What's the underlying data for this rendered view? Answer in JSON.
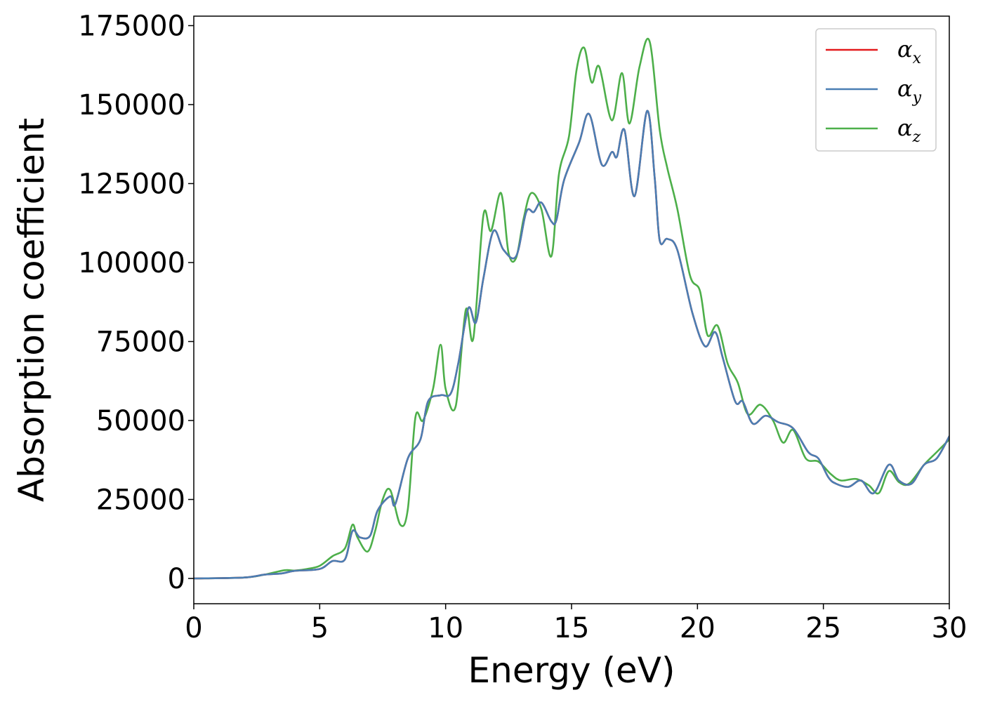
{
  "chart_data": {
    "type": "line",
    "title": "",
    "xlabel": "Energy (eV)",
    "ylabel": "Absorption coefficient",
    "xlim": [
      0,
      30
    ],
    "ylim": [
      -8000,
      178000
    ],
    "xticks": [
      0,
      5,
      10,
      15,
      20,
      25,
      30
    ],
    "xtick_labels": [
      "0",
      "5",
      "10",
      "15",
      "20",
      "25",
      "30"
    ],
    "yticks": [
      0,
      25000,
      50000,
      75000,
      100000,
      125000,
      150000,
      175000
    ],
    "ytick_labels": [
      "0",
      "25000",
      "50000",
      "75000",
      "100000",
      "125000",
      "150000",
      "175000"
    ],
    "grid": false,
    "legend_position": "top-right",
    "series": [
      {
        "name": "αx",
        "legend_base": "α",
        "legend_sub": "x",
        "color": "#e41a1c",
        "points": [
          [
            0,
            0
          ],
          [
            2,
            300
          ],
          [
            2.8,
            1200
          ],
          [
            3.5,
            1600
          ],
          [
            4,
            2400
          ],
          [
            5,
            3000
          ],
          [
            5.5,
            5500
          ],
          [
            6,
            6000
          ],
          [
            6.3,
            15000
          ],
          [
            6.6,
            13000
          ],
          [
            7,
            13500
          ],
          [
            7.3,
            21500
          ],
          [
            7.8,
            26000
          ],
          [
            8,
            23500
          ],
          [
            8.5,
            38000
          ],
          [
            9,
            44000
          ],
          [
            9.3,
            56000
          ],
          [
            9.8,
            58000
          ],
          [
            10.2,
            58500
          ],
          [
            10.5,
            68000
          ],
          [
            10.9,
            85500
          ],
          [
            11.2,
            81000
          ],
          [
            11.5,
            95000
          ],
          [
            11.9,
            110000
          ],
          [
            12.3,
            104000
          ],
          [
            12.8,
            102000
          ],
          [
            13.2,
            116000
          ],
          [
            13.5,
            116000
          ],
          [
            13.8,
            119000
          ],
          [
            14.2,
            113000
          ],
          [
            14.4,
            113500
          ],
          [
            14.7,
            126000
          ],
          [
            15.3,
            138000
          ],
          [
            15.7,
            147000
          ],
          [
            16.2,
            131000
          ],
          [
            16.6,
            135000
          ],
          [
            16.8,
            133500
          ],
          [
            17.1,
            142000
          ],
          [
            17.5,
            121000
          ],
          [
            18,
            148000
          ],
          [
            18.3,
            127000
          ],
          [
            18.5,
            107000
          ],
          [
            18.8,
            107500
          ],
          [
            19.2,
            104000
          ],
          [
            19.8,
            84000
          ],
          [
            20.3,
            73500
          ],
          [
            20.7,
            78000
          ],
          [
            21,
            70000
          ],
          [
            21.5,
            56000
          ],
          [
            21.8,
            56000
          ],
          [
            22.2,
            49000
          ],
          [
            22.7,
            51500
          ],
          [
            23.2,
            49500
          ],
          [
            23.8,
            47500
          ],
          [
            24.4,
            40000
          ],
          [
            24.8,
            38000
          ],
          [
            25.2,
            32000
          ],
          [
            25.5,
            30000
          ],
          [
            26,
            29000
          ],
          [
            26.5,
            31000
          ],
          [
            27,
            27000
          ],
          [
            27.6,
            36000
          ],
          [
            28,
            31000
          ],
          [
            28.5,
            30000
          ],
          [
            29,
            36000
          ],
          [
            29.5,
            38000
          ],
          [
            30,
            45000
          ]
        ]
      },
      {
        "name": "αy",
        "legend_base": "α",
        "legend_sub": "y",
        "color": "#4a7eb3",
        "points": [
          [
            0,
            0
          ],
          [
            2,
            300
          ],
          [
            2.8,
            1200
          ],
          [
            3.5,
            1600
          ],
          [
            4,
            2400
          ],
          [
            5,
            3000
          ],
          [
            5.5,
            5500
          ],
          [
            6,
            6000
          ],
          [
            6.3,
            15000
          ],
          [
            6.6,
            13000
          ],
          [
            7,
            13500
          ],
          [
            7.3,
            21500
          ],
          [
            7.8,
            26000
          ],
          [
            8,
            23500
          ],
          [
            8.5,
            38000
          ],
          [
            9,
            44000
          ],
          [
            9.3,
            56000
          ],
          [
            9.8,
            58000
          ],
          [
            10.2,
            58500
          ],
          [
            10.5,
            68000
          ],
          [
            10.9,
            85500
          ],
          [
            11.2,
            81000
          ],
          [
            11.5,
            95000
          ],
          [
            11.9,
            110000
          ],
          [
            12.3,
            104000
          ],
          [
            12.8,
            102000
          ],
          [
            13.2,
            116000
          ],
          [
            13.5,
            116000
          ],
          [
            13.8,
            119000
          ],
          [
            14.2,
            113000
          ],
          [
            14.4,
            113500
          ],
          [
            14.7,
            126000
          ],
          [
            15.3,
            138000
          ],
          [
            15.7,
            147000
          ],
          [
            16.2,
            131000
          ],
          [
            16.6,
            135000
          ],
          [
            16.8,
            133500
          ],
          [
            17.1,
            142000
          ],
          [
            17.5,
            121000
          ],
          [
            18,
            148000
          ],
          [
            18.3,
            127000
          ],
          [
            18.5,
            107000
          ],
          [
            18.8,
            107500
          ],
          [
            19.2,
            104000
          ],
          [
            19.8,
            84000
          ],
          [
            20.3,
            73500
          ],
          [
            20.7,
            78000
          ],
          [
            21,
            70000
          ],
          [
            21.5,
            56000
          ],
          [
            21.8,
            56000
          ],
          [
            22.2,
            49000
          ],
          [
            22.7,
            51500
          ],
          [
            23.2,
            49500
          ],
          [
            23.8,
            47500
          ],
          [
            24.4,
            40000
          ],
          [
            24.8,
            38000
          ],
          [
            25.2,
            32000
          ],
          [
            25.5,
            30000
          ],
          [
            26,
            29000
          ],
          [
            26.5,
            31000
          ],
          [
            27,
            27000
          ],
          [
            27.6,
            36000
          ],
          [
            28,
            31000
          ],
          [
            28.5,
            30000
          ],
          [
            29,
            36000
          ],
          [
            29.5,
            38000
          ],
          [
            30,
            45000
          ]
        ]
      },
      {
        "name": "αz",
        "legend_base": "α",
        "legend_sub": "z",
        "color": "#4daf4a",
        "points": [
          [
            0,
            0
          ],
          [
            2,
            300
          ],
          [
            2.8,
            1200
          ],
          [
            3.6,
            2600
          ],
          [
            4,
            2500
          ],
          [
            4.5,
            3000
          ],
          [
            5,
            4000
          ],
          [
            5.5,
            7000
          ],
          [
            6,
            9500
          ],
          [
            6.3,
            17000
          ],
          [
            6.5,
            13000
          ],
          [
            6.9,
            8500
          ],
          [
            7.2,
            15000
          ],
          [
            7.5,
            25000
          ],
          [
            7.8,
            28000
          ],
          [
            8.2,
            17000
          ],
          [
            8.5,
            22000
          ],
          [
            8.8,
            51000
          ],
          [
            9.1,
            50000
          ],
          [
            9.5,
            60000
          ],
          [
            9.8,
            74000
          ],
          [
            10,
            60000
          ],
          [
            10.4,
            54500
          ],
          [
            10.8,
            85000
          ],
          [
            11.1,
            76000
          ],
          [
            11.5,
            115000
          ],
          [
            11.8,
            110000
          ],
          [
            12.2,
            122000
          ],
          [
            12.5,
            103000
          ],
          [
            12.8,
            101500
          ],
          [
            13.1,
            114000
          ],
          [
            13.4,
            122000
          ],
          [
            13.8,
            117000
          ],
          [
            14.2,
            102000
          ],
          [
            14.5,
            128000
          ],
          [
            14.9,
            140000
          ],
          [
            15.2,
            161000
          ],
          [
            15.5,
            168000
          ],
          [
            15.8,
            157000
          ],
          [
            16.1,
            162000
          ],
          [
            16.6,
            145000
          ],
          [
            17,
            160000
          ],
          [
            17.3,
            144000
          ],
          [
            17.7,
            162000
          ],
          [
            18.1,
            170000
          ],
          [
            18.5,
            142000
          ],
          [
            18.8,
            130000
          ],
          [
            19.2,
            117000
          ],
          [
            19.7,
            96000
          ],
          [
            20.1,
            91000
          ],
          [
            20.4,
            77000
          ],
          [
            20.8,
            80000
          ],
          [
            21.2,
            68000
          ],
          [
            21.6,
            62000
          ],
          [
            22,
            52000
          ],
          [
            22.5,
            55000
          ],
          [
            23,
            50000
          ],
          [
            23.4,
            43000
          ],
          [
            23.8,
            47000
          ],
          [
            24.3,
            38000
          ],
          [
            24.8,
            37000
          ],
          [
            25.3,
            33000
          ],
          [
            25.7,
            31000
          ],
          [
            26.3,
            31500
          ],
          [
            26.8,
            29500
          ],
          [
            27.2,
            27000
          ],
          [
            27.6,
            34000
          ],
          [
            28,
            30500
          ],
          [
            28.4,
            30000
          ],
          [
            29,
            36000
          ],
          [
            29.5,
            40000
          ],
          [
            30,
            44000
          ]
        ]
      }
    ]
  }
}
